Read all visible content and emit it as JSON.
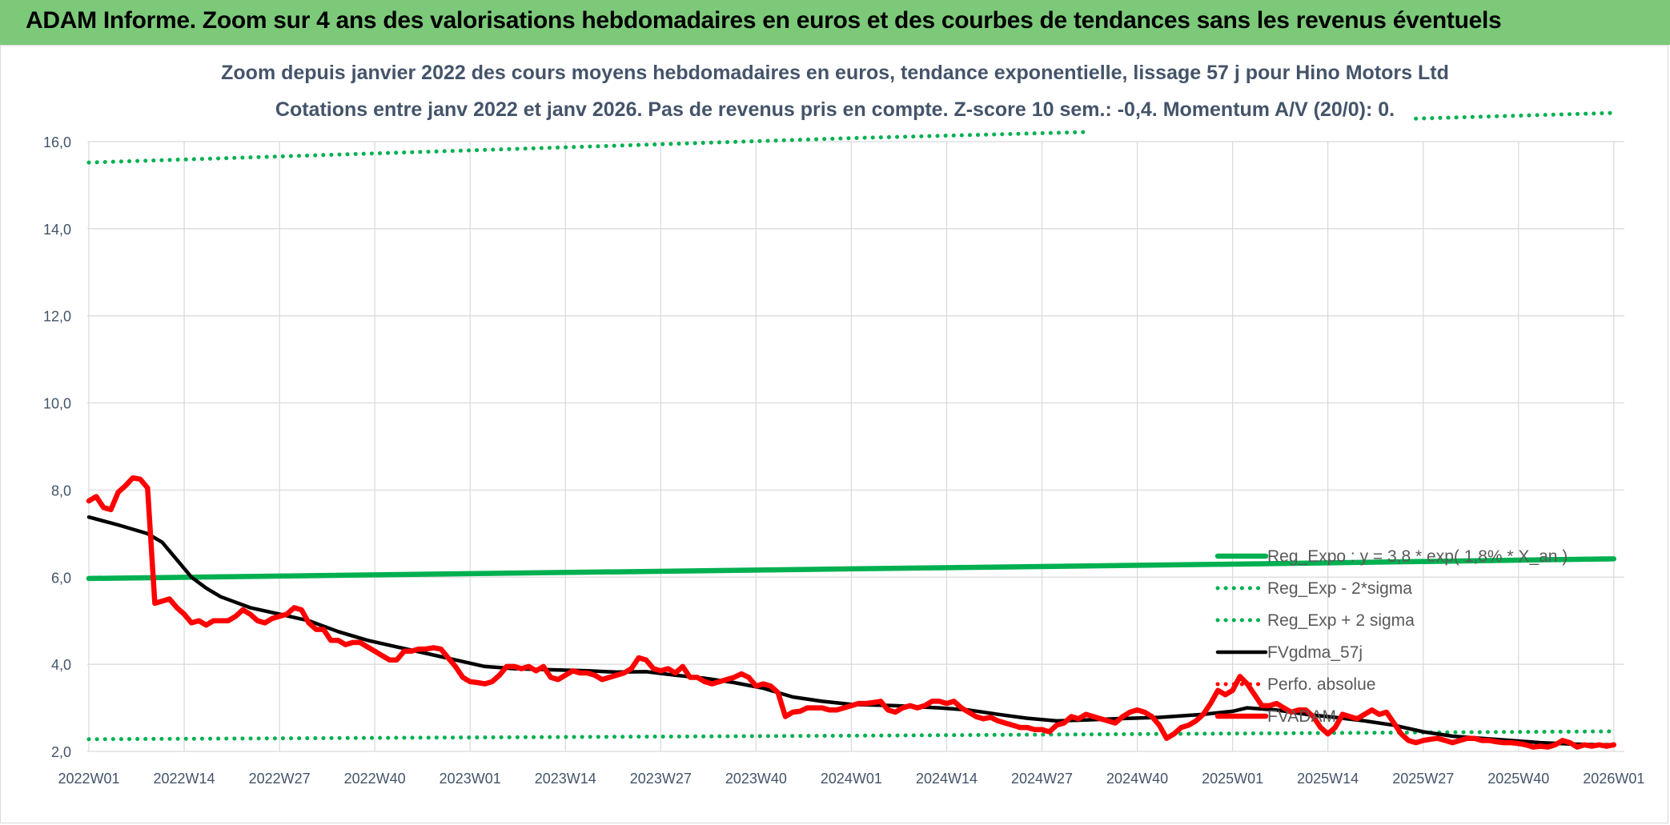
{
  "header": {
    "title": "ADAM Informe. Zoom sur 4 ans des valorisations hebdomadaires en euros et des courbes de tendances sans les revenus éventuels"
  },
  "chart_data": {
    "type": "line",
    "title": "Zoom depuis janvier 2022 des cours moyens hebdomadaires en euros, tendance exponentielle, lissage 57 j pour Hino Motors Ltd",
    "subtitle": "Cotations entre janv 2022 et janv 2026. Pas de revenus pris en compte. Z-score 10 sem.: -0,4. Momentum A/V (20/0): 0.",
    "xlabel": "",
    "ylabel": "",
    "ylim": [
      2.0,
      16.0
    ],
    "yticks": [
      "16,0",
      "14,0",
      "12,0",
      "10,0",
      "8,0",
      "6,0",
      "4,0",
      "2,0"
    ],
    "xlim": [
      0,
      209
    ],
    "xticks": [
      {
        "week": 0,
        "label": "2022W01"
      },
      {
        "week": 13,
        "label": "2022W14"
      },
      {
        "week": 26,
        "label": "2022W27"
      },
      {
        "week": 39,
        "label": "2022W40"
      },
      {
        "week": 52,
        "label": "2023W01"
      },
      {
        "week": 65,
        "label": "2023W14"
      },
      {
        "week": 78,
        "label": "2023W27"
      },
      {
        "week": 91,
        "label": "2023W40"
      },
      {
        "week": 104,
        "label": "2024W01"
      },
      {
        "week": 117,
        "label": "2024W14"
      },
      {
        "week": 130,
        "label": "2024W27"
      },
      {
        "week": 143,
        "label": "2024W40"
      },
      {
        "week": 156,
        "label": "2025W01"
      },
      {
        "week": 169,
        "label": "2025W14"
      },
      {
        "week": 182,
        "label": "2025W27"
      },
      {
        "week": 195,
        "label": "2025W40"
      },
      {
        "week": 208,
        "label": "2026W01"
      }
    ],
    "grid": true,
    "legend": "right",
    "series": [
      {
        "name": "Reg_Expo : y = 3,8 * exp( 1,8% *  X_an )",
        "style": "solid-thick",
        "color": "#00b050",
        "points": [
          [
            0,
            5.97
          ],
          [
            52,
            6.08
          ],
          [
            104,
            6.19
          ],
          [
            156,
            6.3
          ],
          [
            208,
            6.42
          ]
        ]
      },
      {
        "name": "Reg_Exp - 2*sigma",
        "style": "dotted",
        "color": "#00b050",
        "points": [
          [
            0,
            2.28
          ],
          [
            52,
            2.32
          ],
          [
            104,
            2.36
          ],
          [
            156,
            2.41
          ],
          [
            208,
            2.46
          ]
        ]
      },
      {
        "name": "Reg_Exp + 2 sigma",
        "style": "dotted",
        "color": "#00b050",
        "points": [
          [
            0,
            15.52
          ],
          [
            52,
            15.8
          ],
          [
            104,
            16.08
          ],
          [
            136,
            16.22
          ],
          [
            181,
            16.53
          ],
          [
            208,
            16.66
          ]
        ],
        "gap": [
          136,
          181
        ]
      },
      {
        "name": "FVgdma_57j",
        "style": "solid",
        "color": "#000000",
        "points": [
          [
            0,
            7.38
          ],
          [
            4,
            7.2
          ],
          [
            8,
            7.0
          ],
          [
            10,
            6.8
          ],
          [
            12,
            6.4
          ],
          [
            14,
            6.0
          ],
          [
            16,
            5.75
          ],
          [
            18,
            5.55
          ],
          [
            22,
            5.3
          ],
          [
            26,
            5.15
          ],
          [
            30,
            5.0
          ],
          [
            34,
            4.75
          ],
          [
            38,
            4.55
          ],
          [
            42,
            4.4
          ],
          [
            46,
            4.25
          ],
          [
            50,
            4.1
          ],
          [
            54,
            3.95
          ],
          [
            58,
            3.9
          ],
          [
            62,
            3.88
          ],
          [
            68,
            3.85
          ],
          [
            72,
            3.82
          ],
          [
            76,
            3.83
          ],
          [
            80,
            3.75
          ],
          [
            84,
            3.68
          ],
          [
            88,
            3.58
          ],
          [
            92,
            3.45
          ],
          [
            96,
            3.25
          ],
          [
            100,
            3.15
          ],
          [
            104,
            3.08
          ],
          [
            110,
            3.05
          ],
          [
            116,
            3.0
          ],
          [
            120,
            2.95
          ],
          [
            124,
            2.85
          ],
          [
            128,
            2.76
          ],
          [
            132,
            2.7
          ],
          [
            136,
            2.72
          ],
          [
            140,
            2.75
          ],
          [
            146,
            2.78
          ],
          [
            152,
            2.85
          ],
          [
            156,
            2.92
          ],
          [
            158,
            3.0
          ],
          [
            162,
            2.95
          ],
          [
            166,
            2.85
          ],
          [
            170,
            2.78
          ],
          [
            174,
            2.7
          ],
          [
            178,
            2.6
          ],
          [
            182,
            2.45
          ],
          [
            186,
            2.35
          ],
          [
            190,
            2.3
          ],
          [
            194,
            2.25
          ],
          [
            198,
            2.2
          ],
          [
            202,
            2.17
          ],
          [
            206,
            2.15
          ],
          [
            208,
            2.15
          ]
        ]
      },
      {
        "name": "Perfo. absolue",
        "style": "dotted",
        "color": "#ff0000",
        "points": []
      },
      {
        "name": "FVADAM",
        "style": "solid-thick",
        "color": "#ff0000",
        "points": [
          [
            0,
            7.75
          ],
          [
            1,
            7.85
          ],
          [
            2,
            7.6
          ],
          [
            3,
            7.55
          ],
          [
            4,
            7.95
          ],
          [
            5,
            8.1
          ],
          [
            6,
            8.28
          ],
          [
            7,
            8.25
          ],
          [
            8,
            8.05
          ],
          [
            9,
            5.4
          ],
          [
            10,
            5.45
          ],
          [
            11,
            5.5
          ],
          [
            12,
            5.3
          ],
          [
            13,
            5.15
          ],
          [
            14,
            4.95
          ],
          [
            15,
            5.0
          ],
          [
            16,
            4.9
          ],
          [
            17,
            5.0
          ],
          [
            18,
            5.0
          ],
          [
            19,
            5.0
          ],
          [
            20,
            5.1
          ],
          [
            21,
            5.25
          ],
          [
            22,
            5.15
          ],
          [
            23,
            5.0
          ],
          [
            24,
            4.95
          ],
          [
            25,
            5.05
          ],
          [
            26,
            5.1
          ],
          [
            27,
            5.15
          ],
          [
            28,
            5.3
          ],
          [
            29,
            5.25
          ],
          [
            30,
            4.95
          ],
          [
            31,
            4.8
          ],
          [
            32,
            4.8
          ],
          [
            33,
            4.55
          ],
          [
            34,
            4.55
          ],
          [
            35,
            4.45
          ],
          [
            36,
            4.5
          ],
          [
            37,
            4.5
          ],
          [
            38,
            4.4
          ],
          [
            39,
            4.3
          ],
          [
            40,
            4.2
          ],
          [
            41,
            4.1
          ],
          [
            42,
            4.1
          ],
          [
            43,
            4.3
          ],
          [
            44,
            4.3
          ],
          [
            45,
            4.35
          ],
          [
            46,
            4.35
          ],
          [
            47,
            4.38
          ],
          [
            48,
            4.35
          ],
          [
            49,
            4.15
          ],
          [
            50,
            3.95
          ],
          [
            51,
            3.7
          ],
          [
            52,
            3.6
          ],
          [
            53,
            3.58
          ],
          [
            54,
            3.55
          ],
          [
            55,
            3.6
          ],
          [
            56,
            3.75
          ],
          [
            57,
            3.95
          ],
          [
            58,
            3.95
          ],
          [
            59,
            3.9
          ],
          [
            60,
            3.95
          ],
          [
            61,
            3.85
          ],
          [
            62,
            3.95
          ],
          [
            63,
            3.7
          ],
          [
            64,
            3.65
          ],
          [
            65,
            3.75
          ],
          [
            66,
            3.85
          ],
          [
            67,
            3.8
          ],
          [
            68,
            3.8
          ],
          [
            69,
            3.75
          ],
          [
            70,
            3.65
          ],
          [
            71,
            3.7
          ],
          [
            72,
            3.75
          ],
          [
            73,
            3.8
          ],
          [
            74,
            3.9
          ],
          [
            75,
            4.15
          ],
          [
            76,
            4.1
          ],
          [
            77,
            3.9
          ],
          [
            78,
            3.85
          ],
          [
            79,
            3.9
          ],
          [
            80,
            3.8
          ],
          [
            81,
            3.95
          ],
          [
            82,
            3.7
          ],
          [
            83,
            3.7
          ],
          [
            84,
            3.6
          ],
          [
            85,
            3.55
          ],
          [
            86,
            3.6
          ],
          [
            87,
            3.65
          ],
          [
            88,
            3.7
          ],
          [
            89,
            3.78
          ],
          [
            90,
            3.7
          ],
          [
            91,
            3.5
          ],
          [
            92,
            3.55
          ],
          [
            93,
            3.5
          ],
          [
            94,
            3.35
          ],
          [
            95,
            2.8
          ],
          [
            96,
            2.9
          ],
          [
            97,
            2.92
          ],
          [
            98,
            3.0
          ],
          [
            99,
            3.0
          ],
          [
            100,
            3.0
          ],
          [
            101,
            2.95
          ],
          [
            102,
            2.95
          ],
          [
            103,
            3.0
          ],
          [
            104,
            3.05
          ],
          [
            105,
            3.1
          ],
          [
            106,
            3.1
          ],
          [
            107,
            3.12
          ],
          [
            108,
            3.15
          ],
          [
            109,
            2.95
          ],
          [
            110,
            2.9
          ],
          [
            111,
            3.0
          ],
          [
            112,
            3.05
          ],
          [
            113,
            3.0
          ],
          [
            114,
            3.05
          ],
          [
            115,
            3.15
          ],
          [
            116,
            3.15
          ],
          [
            117,
            3.1
          ],
          [
            118,
            3.15
          ],
          [
            119,
            3.0
          ],
          [
            120,
            2.9
          ],
          [
            121,
            2.8
          ],
          [
            122,
            2.75
          ],
          [
            123,
            2.78
          ],
          [
            124,
            2.7
          ],
          [
            125,
            2.65
          ],
          [
            126,
            2.6
          ],
          [
            127,
            2.55
          ],
          [
            128,
            2.55
          ],
          [
            129,
            2.5
          ],
          [
            130,
            2.5
          ],
          [
            131,
            2.45
          ],
          [
            132,
            2.6
          ],
          [
            133,
            2.65
          ],
          [
            134,
            2.8
          ],
          [
            135,
            2.75
          ],
          [
            136,
            2.85
          ],
          [
            137,
            2.8
          ],
          [
            138,
            2.75
          ],
          [
            139,
            2.7
          ],
          [
            140,
            2.65
          ],
          [
            141,
            2.8
          ],
          [
            142,
            2.9
          ],
          [
            143,
            2.95
          ],
          [
            144,
            2.9
          ],
          [
            145,
            2.8
          ],
          [
            146,
            2.6
          ],
          [
            147,
            2.3
          ],
          [
            148,
            2.4
          ],
          [
            149,
            2.55
          ],
          [
            150,
            2.6
          ],
          [
            151,
            2.7
          ],
          [
            152,
            2.85
          ],
          [
            153,
            3.1
          ],
          [
            154,
            3.4
          ],
          [
            155,
            3.3
          ],
          [
            156,
            3.4
          ],
          [
            157,
            3.72
          ],
          [
            158,
            3.55
          ],
          [
            159,
            3.3
          ],
          [
            160,
            3.05
          ],
          [
            161,
            3.05
          ],
          [
            162,
            3.1
          ],
          [
            163,
            3.0
          ],
          [
            164,
            2.9
          ],
          [
            165,
            2.95
          ],
          [
            166,
            2.95
          ],
          [
            167,
            2.8
          ],
          [
            168,
            2.55
          ],
          [
            169,
            2.4
          ],
          [
            170,
            2.55
          ],
          [
            171,
            2.85
          ],
          [
            172,
            2.8
          ],
          [
            173,
            2.75
          ],
          [
            174,
            2.85
          ],
          [
            175,
            2.95
          ],
          [
            176,
            2.85
          ],
          [
            177,
            2.9
          ],
          [
            178,
            2.65
          ],
          [
            179,
            2.4
          ],
          [
            180,
            2.25
          ],
          [
            181,
            2.2
          ],
          [
            182,
            2.25
          ],
          [
            183,
            2.28
          ],
          [
            184,
            2.3
          ],
          [
            185,
            2.25
          ],
          [
            186,
            2.2
          ],
          [
            187,
            2.25
          ],
          [
            188,
            2.3
          ],
          [
            189,
            2.3
          ],
          [
            190,
            2.25
          ],
          [
            191,
            2.25
          ],
          [
            192,
            2.22
          ],
          [
            193,
            2.2
          ],
          [
            194,
            2.2
          ],
          [
            195,
            2.18
          ],
          [
            196,
            2.15
          ],
          [
            197,
            2.1
          ],
          [
            198,
            2.12
          ],
          [
            199,
            2.1
          ],
          [
            200,
            2.15
          ],
          [
            201,
            2.25
          ],
          [
            202,
            2.2
          ],
          [
            203,
            2.1
          ],
          [
            204,
            2.15
          ],
          [
            205,
            2.12
          ],
          [
            206,
            2.15
          ],
          [
            207,
            2.12
          ],
          [
            208,
            2.15
          ]
        ]
      }
    ]
  }
}
